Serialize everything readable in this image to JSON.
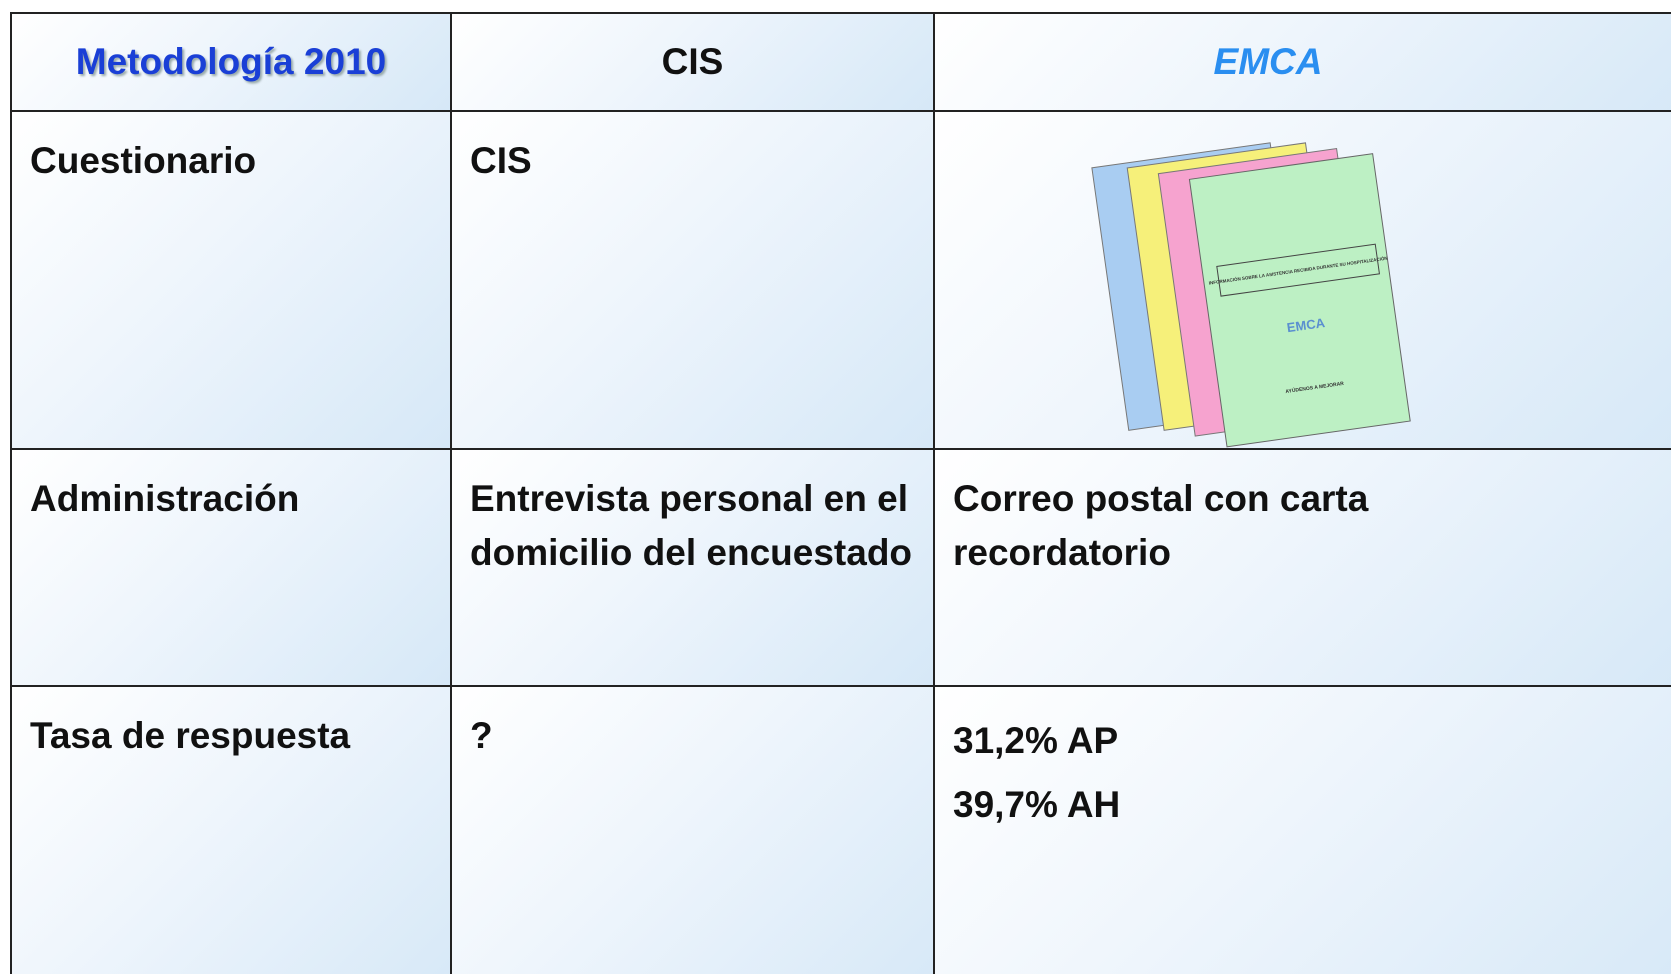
{
  "table": {
    "header": [
      "Metodología 2010",
      "CIS",
      "EMCA"
    ],
    "rows": [
      [
        "Cuestionario",
        "CIS"
      ],
      [
        "Administración",
        "Entrevista personal en el domicilio del encuestado",
        "Correo postal con carta recordatorio"
      ],
      [
        "Tasa de respuesta",
        "?",
        [
          "31,2% AP",
          "39,7% AH"
        ]
      ]
    ]
  },
  "document_image": {
    "title": "INFORMACIÓN SOBRE LA ASISTENCIA RECIBIDA DURANTE SU HOSPITALIZACIÓN",
    "logo": "EMCA",
    "footer": "AYÚDENOS A MEJORAR"
  }
}
